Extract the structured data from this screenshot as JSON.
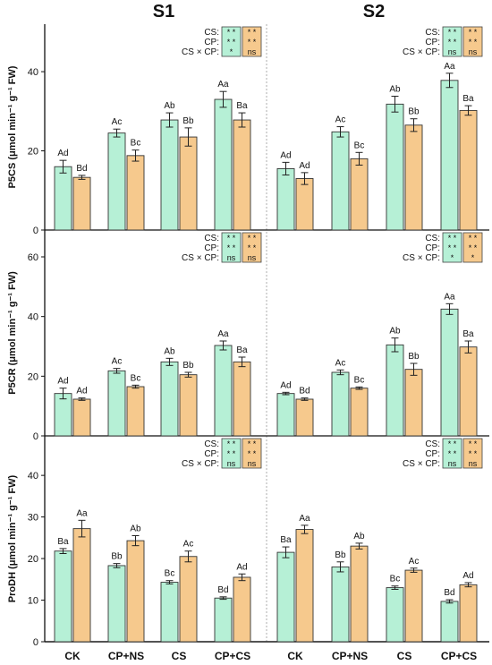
{
  "figure": {
    "sections": [
      "S1",
      "S2"
    ],
    "categories": [
      "CK",
      "CP+NS",
      "CS",
      "CP+CS"
    ],
    "colors": {
      "series1": "#b6f0d6",
      "series2": "#f6c98d",
      "stroke": "#333333"
    },
    "sig_labels": [
      "CS:",
      "CP:",
      "CS × CP:"
    ]
  },
  "chart_data": [
    {
      "type": "bar",
      "ylabel": "P5CS (μmol min⁻¹ g⁻¹ FW)",
      "ylim": [
        0,
        52
      ],
      "yticks": [
        0,
        20,
        40
      ],
      "groups": [
        {
          "section": "S1",
          "series": [
            {
              "values": [
                16.0,
                24.5,
                27.8,
                33.0
              ],
              "errors": [
                1.6,
                1.0,
                1.8,
                2.0
              ],
              "labels": [
                "Ad",
                "Ac",
                "Ab",
                "Aa"
              ]
            },
            {
              "values": [
                13.3,
                18.8,
                23.5,
                27.8
              ],
              "errors": [
                0.5,
                1.4,
                2.3,
                1.8
              ],
              "labels": [
                "Bd",
                "Bc",
                "Bb",
                "Ba"
              ]
            }
          ],
          "significance": [
            [
              "* *",
              "* *"
            ],
            [
              "* *",
              "* *"
            ],
            [
              "*",
              "ns"
            ]
          ]
        },
        {
          "section": "S2",
          "series": [
            {
              "values": [
                15.5,
                24.8,
                31.8,
                37.8
              ],
              "errors": [
                1.6,
                1.3,
                2.0,
                1.8
              ],
              "labels": [
                "Ad",
                "Ac",
                "Ab",
                "Aa"
              ]
            },
            {
              "values": [
                13.0,
                18.0,
                26.5,
                30.2
              ],
              "errors": [
                1.5,
                1.6,
                1.6,
                1.2
              ],
              "labels": [
                "Ad",
                "Bc",
                "Bb",
                "Ba"
              ]
            }
          ],
          "significance": [
            [
              "* *",
              "* *"
            ],
            [
              "* *",
              "* *"
            ],
            [
              "ns",
              "ns"
            ]
          ]
        }
      ]
    },
    {
      "type": "bar",
      "ylabel": "P5CR (μmol min⁻¹ g⁻¹ FW)",
      "ylim": [
        0,
        69
      ],
      "yticks": [
        0,
        20,
        40,
        60
      ],
      "groups": [
        {
          "section": "S1",
          "series": [
            {
              "values": [
                14.2,
                21.8,
                24.8,
                30.3
              ],
              "errors": [
                1.8,
                0.8,
                1.2,
                1.5
              ],
              "labels": [
                "Ad",
                "Ac",
                "Ab",
                "Aa"
              ]
            },
            {
              "values": [
                12.3,
                16.5,
                20.5,
                24.8
              ],
              "errors": [
                0.4,
                0.5,
                0.8,
                1.6
              ],
              "labels": [
                "Ad",
                "Bc",
                "Bb",
                "Ba"
              ]
            }
          ],
          "significance": [
            [
              "* *",
              "* *"
            ],
            [
              "* *",
              "* *"
            ],
            [
              "ns",
              "ns"
            ]
          ]
        },
        {
          "section": "S2",
          "series": [
            {
              "values": [
                14.2,
                21.3,
                30.5,
                42.5
              ],
              "errors": [
                0.4,
                0.8,
                2.3,
                1.8
              ],
              "labels": [
                "Ad",
                "Ac",
                "Ab",
                "Aa"
              ]
            },
            {
              "values": [
                12.3,
                16.0,
                22.3,
                29.8
              ],
              "errors": [
                0.4,
                0.4,
                2.0,
                2.0
              ],
              "labels": [
                "Bd",
                "Bc",
                "Bb",
                "Ba"
              ]
            }
          ],
          "significance": [
            [
              "* *",
              "* *"
            ],
            [
              "* *",
              "* *"
            ],
            [
              "*",
              "*"
            ]
          ]
        }
      ]
    },
    {
      "type": "bar",
      "ylabel": "ProDH (μmol min⁻¹ g⁻¹ FW)",
      "ylim": [
        0,
        49.5
      ],
      "yticks": [
        0,
        10,
        20,
        30,
        40
      ],
      "groups": [
        {
          "section": "S1",
          "series": [
            {
              "values": [
                21.8,
                18.3,
                14.3,
                10.5
              ],
              "errors": [
                0.6,
                0.5,
                0.4,
                0.3
              ],
              "labels": [
                "Ba",
                "Bb",
                "Bc",
                "Bd"
              ]
            },
            {
              "values": [
                27.2,
                24.3,
                20.5,
                15.5
              ],
              "errors": [
                2.0,
                1.2,
                1.3,
                0.8
              ],
              "labels": [
                "Aa",
                "Ab",
                "Ac",
                "Ad"
              ]
            }
          ],
          "significance": [
            [
              "* *",
              "* *"
            ],
            [
              "* *",
              "* *"
            ],
            [
              "ns",
              "ns"
            ]
          ]
        },
        {
          "section": "S2",
          "series": [
            {
              "values": [
                21.5,
                18.0,
                13.0,
                9.7
              ],
              "errors": [
                1.3,
                1.2,
                0.4,
                0.4
              ],
              "labels": [
                "Ba",
                "Bb",
                "Bc",
                "Bd"
              ]
            },
            {
              "values": [
                27.0,
                23.0,
                17.2,
                13.7
              ],
              "errors": [
                1.0,
                0.7,
                0.5,
                0.5
              ],
              "labels": [
                "Aa",
                "Ab",
                "Ac",
                "Ad"
              ]
            }
          ],
          "significance": [
            [
              "* *",
              "* *"
            ],
            [
              "* *",
              "* *"
            ],
            [
              "ns",
              "ns"
            ]
          ]
        }
      ]
    }
  ]
}
